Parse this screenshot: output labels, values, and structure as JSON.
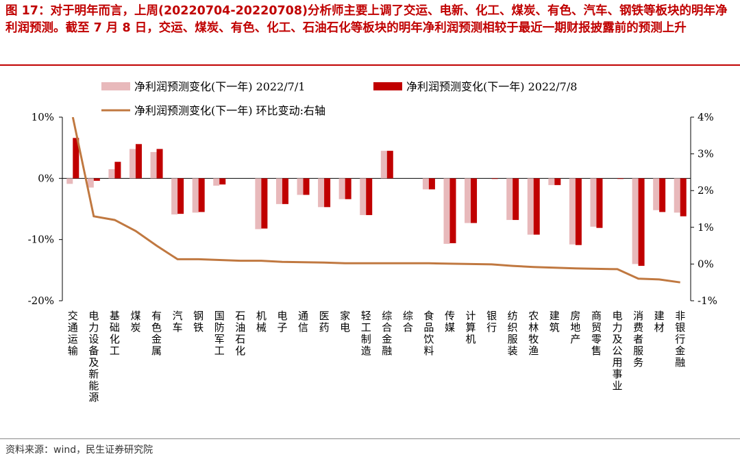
{
  "title": "图 17：对于明年而言，上周(20220704-20220708)分析师主要上调了交运、电新、化工、煤炭、有色、汽车、钢铁等板块的明年净利润预测。截至 7 月 8 日，交运、煤炭、有色、化工、石油石化等板块的明年净利润预测相较于最近一期财报披露前的预测上升",
  "source": "资料来源：wind，民生证券研究院",
  "chart_data": {
    "type": "bar",
    "categories": [
      "交通运输",
      "电力设备及新能源",
      "基础化工",
      "煤炭",
      "有色金属",
      "汽车",
      "钢铁",
      "国防军工",
      "石油石化",
      "机械",
      "电子",
      "通信",
      "医药",
      "家电",
      "轻工制造",
      "综合金融",
      "综合",
      "食品饮料",
      "传媒",
      "计算机",
      "银行",
      "纺织服装",
      "农林牧渔",
      "建筑",
      "房地产",
      "商贸零售",
      "电力及公用事业",
      "消费者服务",
      "建材",
      "非银行金融"
    ],
    "series": [
      {
        "name": "净利润预测变化(下一年) 2022/7/1",
        "color": "#e8b9bb",
        "axis": "left",
        "values": [
          -0.9,
          -1.5,
          1.5,
          4.8,
          4.3,
          -5.9,
          -5.6,
          -1.2,
          0,
          -8.3,
          -4.2,
          -2.7,
          -4.7,
          -3.4,
          -6.0,
          4.5,
          0,
          -1.8,
          -10.7,
          -7.3,
          0,
          -6.8,
          -9.2,
          -1.1,
          -10.8,
          -7.9,
          0,
          -14.0,
          -5.2,
          -5.6
        ]
      },
      {
        "name": "净利润预测变化(下一年) 2022/7/8",
        "color": "#c00000",
        "axis": "left",
        "values": [
          6.6,
          -0.4,
          2.7,
          5.6,
          4.8,
          -5.8,
          -5.5,
          -1.0,
          0,
          -8.2,
          -4.2,
          -2.7,
          -4.7,
          -3.4,
          -6.0,
          4.5,
          0,
          -1.8,
          -10.6,
          -7.3,
          -0.1,
          -6.8,
          -9.2,
          -1.1,
          -10.9,
          -8.1,
          -0.1,
          -14.3,
          -5.5,
          -6.2
        ]
      },
      {
        "name": "净利润预测变化(下一年) 环比变动:右轴",
        "color": "#c07840",
        "axis": "right",
        "type": "line",
        "values": [
          4.0,
          1.3,
          1.2,
          0.9,
          0.5,
          0.13,
          0.13,
          0.11,
          0.09,
          0.09,
          0.06,
          0.05,
          0.04,
          0.02,
          0.02,
          0.02,
          0.02,
          0.02,
          0.01,
          0.0,
          -0.01,
          -0.05,
          -0.08,
          -0.1,
          -0.12,
          -0.13,
          -0.14,
          -0.4,
          -0.42,
          -0.5
        ]
      }
    ],
    "y_left": {
      "ylim": [
        -20,
        10
      ],
      "ticks": [
        "10%",
        "0%",
        "-10%",
        "-20%"
      ]
    },
    "y_right": {
      "ylim": [
        -1,
        4
      ],
      "ticks": [
        "4%",
        "3%",
        "2%",
        "1%",
        "0%",
        "-1%"
      ]
    },
    "legend_position": "top"
  }
}
